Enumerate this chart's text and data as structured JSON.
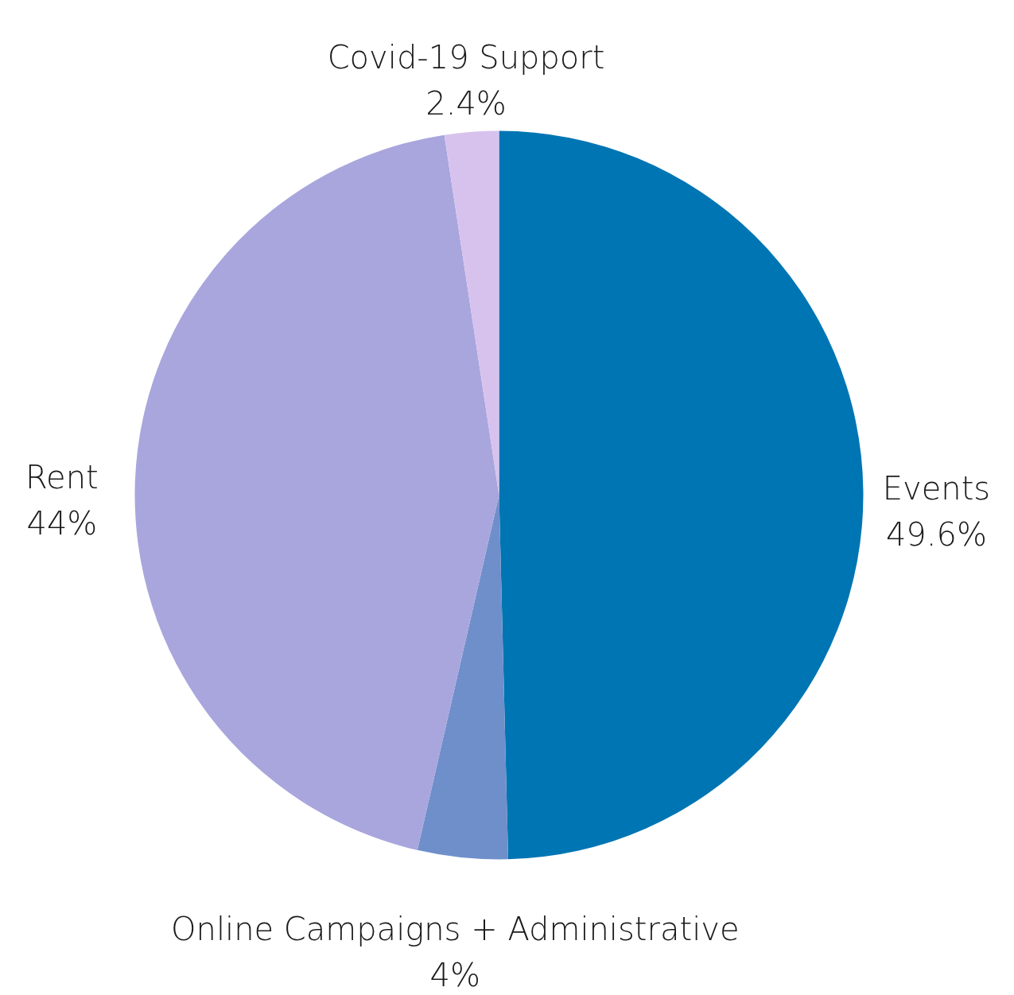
{
  "chart_data": {
    "type": "pie",
    "categories": [
      "Events",
      "Online Campaigns + Administrative",
      "Rent",
      "Covid-19 Support"
    ],
    "values": [
      49.6,
      4,
      44,
      2.4
    ],
    "value_labels": [
      "49.6%",
      "4%",
      "44%",
      "2.4%"
    ],
    "colors": [
      "#0075b3",
      "#6f8fcb",
      "#a9a6dd",
      "#d7c2ee"
    ]
  }
}
